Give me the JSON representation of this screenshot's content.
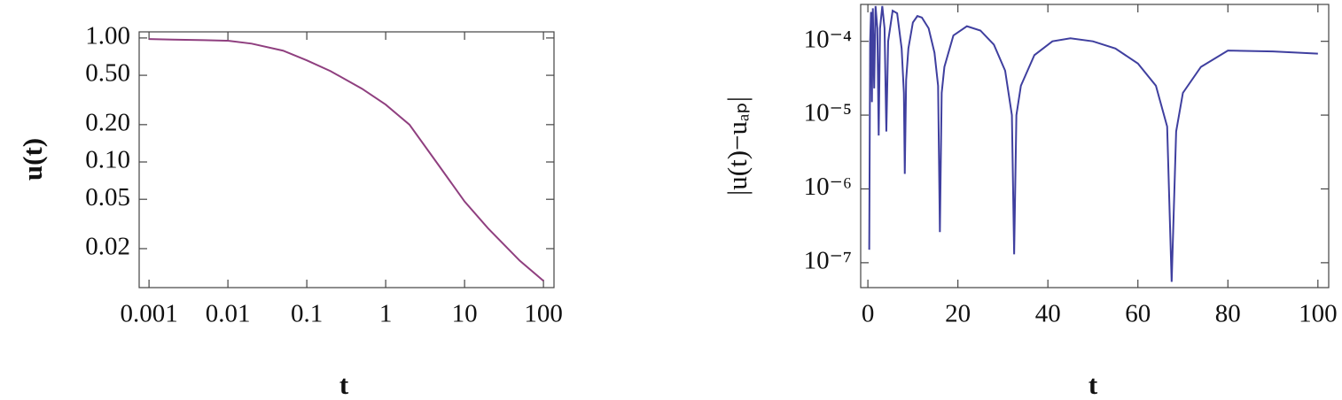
{
  "chart_data": [
    {
      "type": "line",
      "xlabel": "t",
      "ylabel": "u(t)",
      "xscale": "log",
      "yscale": "log",
      "x": [
        0.001,
        0.002,
        0.005,
        0.01,
        0.02,
        0.05,
        0.1,
        0.2,
        0.5,
        1,
        2,
        5,
        10,
        20,
        50,
        100
      ],
      "series": [
        {
          "color": "#8f3f7f",
          "values": [
            0.98,
            0.97,
            0.96,
            0.95,
            0.9,
            0.79,
            0.66,
            0.54,
            0.39,
            0.29,
            0.2,
            0.089,
            0.048,
            0.029,
            0.016,
            0.011
          ]
        }
      ],
      "xlim": [
        0.00075,
        136
      ],
      "ylim": [
        0.0097,
        1.12
      ],
      "xticks": [
        0.001,
        0.01,
        0.1,
        1,
        10,
        100
      ],
      "yticks": [
        {
          "value": 1,
          "label": "1.00"
        },
        {
          "value": 0.5,
          "label": "0.50"
        },
        {
          "value": 0.2,
          "label": "0.20"
        },
        {
          "value": 0.1,
          "label": "0.10"
        },
        {
          "value": 0.05,
          "label": "0.05"
        },
        {
          "value": 0.02,
          "label": "0.02"
        }
      ]
    },
    {
      "type": "line",
      "xlabel": "t",
      "ylabel": "|u(t)−uₐₚ|",
      "yscale": "log",
      "x": [
        0.3,
        0.5,
        0.7,
        0.9,
        1.1,
        1.4,
        1.7,
        2.1,
        2.4,
        2.7,
        3.2,
        3.7,
        4.1,
        4.5,
        5.5,
        6.5,
        7.5,
        8.0,
        8.2,
        8.5,
        9,
        10,
        11,
        12,
        13.5,
        14.8,
        15.6,
        16,
        16.4,
        17,
        19,
        22,
        25,
        28,
        30.5,
        32,
        32.5,
        33,
        34,
        37,
        41,
        45,
        50,
        55,
        60,
        64,
        66.5,
        67.5,
        68.5,
        70,
        74,
        80,
        90,
        100
      ],
      "series": [
        {
          "color": "#3f3f9f",
          "values": [
            1.5e-07,
            0.0001,
            0.00025,
            1.5e-05,
            0.00028,
            2.3e-05,
            0.0003,
            0.00015,
            5.3e-06,
            0.00015,
            0.0003,
            0.00015,
            6e-06,
            0.0001,
            0.00026,
            0.00024,
            8e-05,
            2e-05,
            1.6e-06,
            3e-05,
            8e-05,
            0.00018,
            0.00022,
            0.00021,
            0.00015,
            7e-05,
            2.5e-05,
            2.6e-07,
            2e-05,
            4.5e-05,
            0.00012,
            0.00016,
            0.00014,
            9e-05,
            4e-05,
            1e-05,
            1.3e-07,
            1e-05,
            2.5e-05,
            6.5e-05,
            0.0001,
            0.00011,
            0.0001,
            8e-05,
            5e-05,
            2.5e-05,
            7e-06,
            5.5e-08,
            6e-06,
            2e-05,
            4.5e-05,
            7.5e-05,
            7.3e-05,
            6.8e-05
          ]
        }
      ],
      "xlim": [
        -1.6,
        102.4
      ],
      "ylim": [
        4.6e-08,
        0.000316
      ],
      "xticks": [
        0,
        20,
        40,
        60,
        80,
        100
      ],
      "yticks": [
        {
          "value": 0.0001,
          "label": "10⁻⁴"
        },
        {
          "value": 1e-05,
          "label": "10⁻⁵"
        },
        {
          "value": 1e-06,
          "label": "10⁻⁶"
        },
        {
          "value": 1e-07,
          "label": "10⁻⁷"
        }
      ]
    }
  ]
}
